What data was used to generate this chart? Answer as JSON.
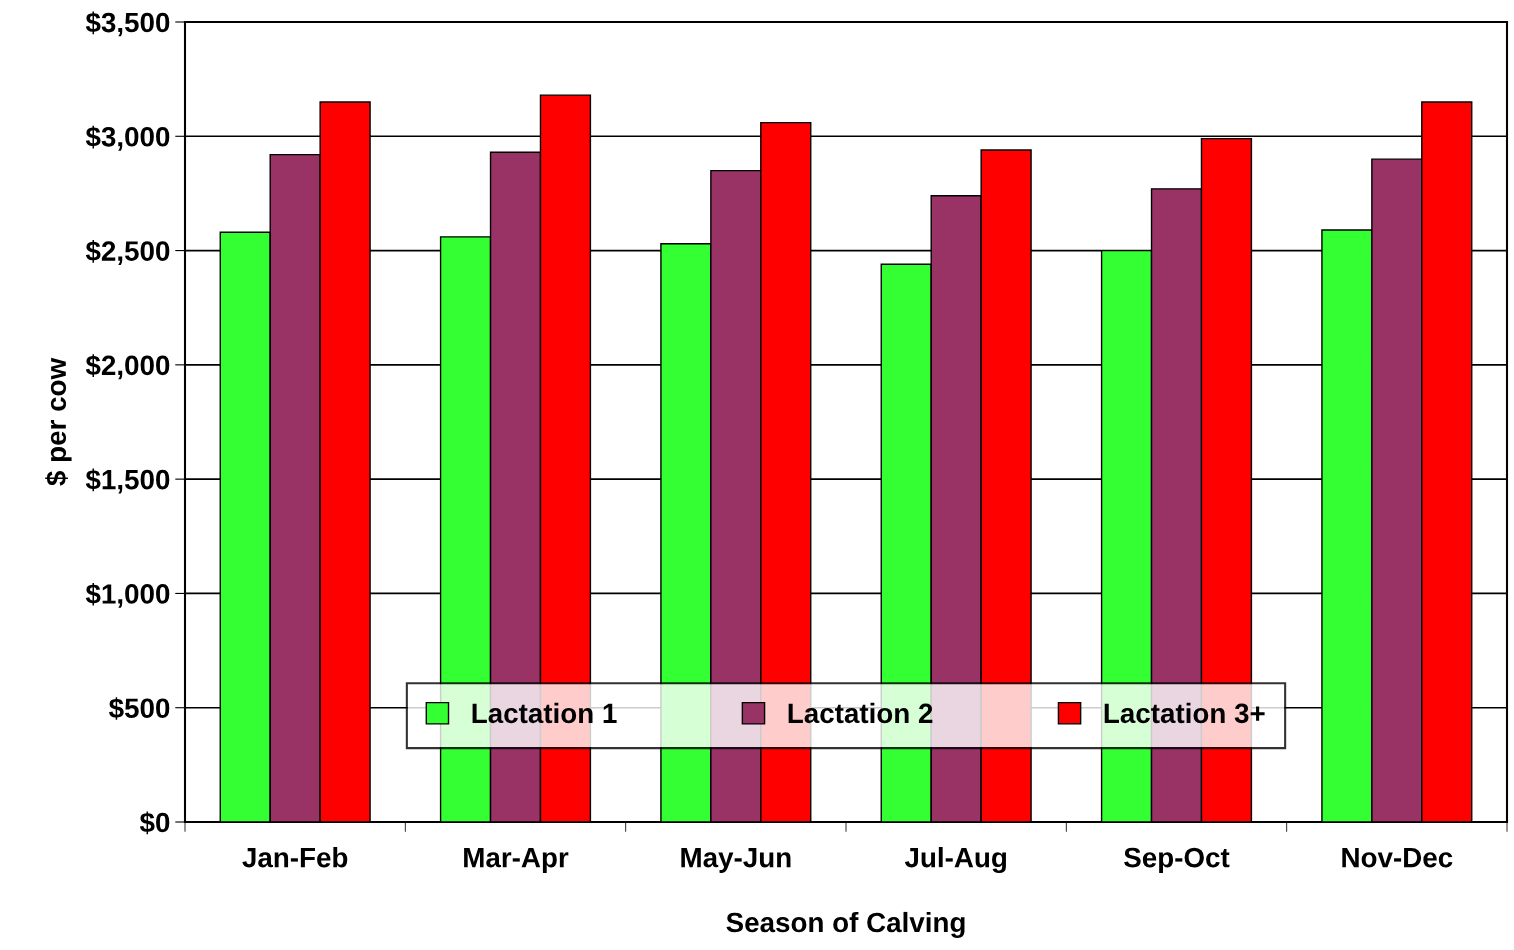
{
  "chart_data": {
    "type": "bar",
    "xlabel": "Season of Calving",
    "ylabel": "$ per cow",
    "categories": [
      "Jan-Feb",
      "Mar-Apr",
      "May-Jun",
      "Jul-Aug",
      "Sep-Oct",
      "Nov-Dec"
    ],
    "series": [
      {
        "name": "Lactation 1",
        "color": "#33ff33",
        "values": [
          2580,
          2560,
          2530,
          2440,
          2500,
          2590
        ]
      },
      {
        "name": "Lactation 2",
        "color": "#993366",
        "values": [
          2920,
          2930,
          2850,
          2740,
          2770,
          2900
        ]
      },
      {
        "name": "Lactation 3+",
        "color": "#ff0000",
        "values": [
          3150,
          3180,
          3060,
          2940,
          2990,
          3150
        ]
      }
    ],
    "ylim": [
      0,
      3500
    ],
    "yticks": [
      {
        "value": 0,
        "label": "$0"
      },
      {
        "value": 500,
        "label": "$500"
      },
      {
        "value": 1000,
        "label": "$1,000"
      },
      {
        "value": 1500,
        "label": "$1,500"
      },
      {
        "value": 2000,
        "label": "$2,000"
      },
      {
        "value": 2500,
        "label": "$2,500"
      },
      {
        "value": 3000,
        "label": "$3,000"
      },
      {
        "value": 3500,
        "label": "$3,500"
      }
    ],
    "grid": "y",
    "legend": "bottom"
  }
}
